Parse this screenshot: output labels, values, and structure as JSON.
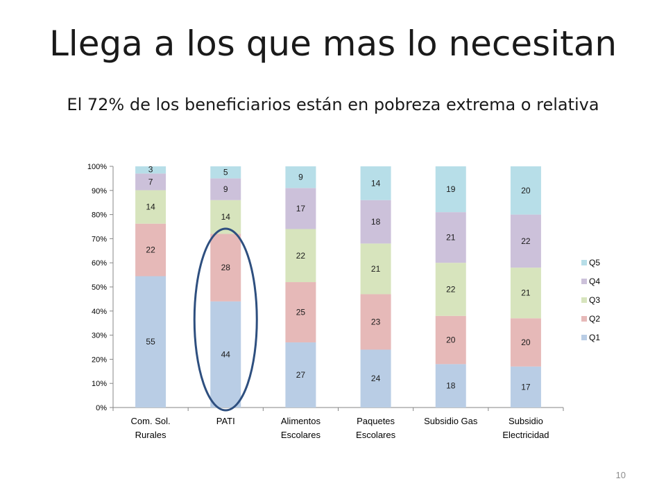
{
  "slide": {
    "title": "Llega a los que mas lo necesitan",
    "subtitle": "El 72% de los beneficiarios están en pobreza extrema o relativa",
    "page_number": "10"
  },
  "chart_data": {
    "type": "bar",
    "stacked": "percent",
    "categories": [
      [
        "Com. Sol.",
        "Rurales"
      ],
      [
        "PATI"
      ],
      [
        "Alimentos",
        "Escolares"
      ],
      [
        "Paquetes",
        "Escolares"
      ],
      [
        "Subsidio Gas"
      ],
      [
        "Subsidio",
        "Electricidad"
      ]
    ],
    "series": [
      {
        "name": "Q1",
        "color": "#b9cde5",
        "values": [
          55,
          44,
          27,
          24,
          18,
          17
        ]
      },
      {
        "name": "Q2",
        "color": "#e6b9b8",
        "values": [
          22,
          28,
          25,
          23,
          20,
          20
        ]
      },
      {
        "name": "Q3",
        "color": "#d7e4bd",
        "values": [
          14,
          14,
          22,
          21,
          22,
          21
        ]
      },
      {
        "name": "Q4",
        "color": "#ccc1da",
        "values": [
          7,
          9,
          17,
          18,
          21,
          22
        ]
      },
      {
        "name": "Q5",
        "color": "#b7dee8",
        "values": [
          3,
          5,
          9,
          14,
          19,
          20
        ]
      }
    ],
    "yticks": [
      "0%",
      "10%",
      "20%",
      "30%",
      "40%",
      "50%",
      "60%",
      "70%",
      "80%",
      "90%",
      "100%"
    ],
    "ylim": [
      0,
      100
    ],
    "legend_position": "right",
    "legend_order": [
      "Q5",
      "Q4",
      "Q3",
      "Q2",
      "Q1"
    ],
    "annotation": {
      "type": "ellipse",
      "highlights_category": "PATI",
      "color": "#2e4f7f"
    }
  }
}
